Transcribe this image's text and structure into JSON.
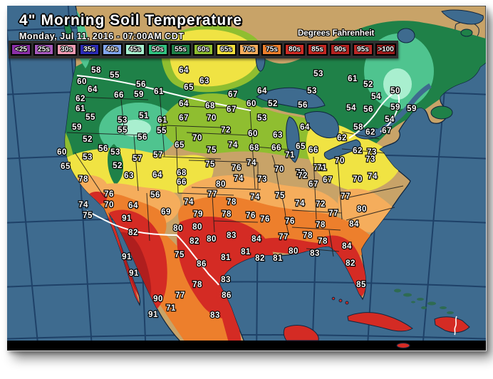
{
  "header": {
    "title": "4\" Morning Soil Temperature",
    "date_line": "Monday, Jul 11, 2016 - 07:00AM CDT",
    "units_label": "Degrees Fahrenheit"
  },
  "legend": {
    "items": [
      {
        "label": "<25",
        "color": "#8B2FA8"
      },
      {
        "label": "25s",
        "color": "#A85ABE"
      },
      {
        "label": "30s",
        "color": "#F09CB4"
      },
      {
        "label": "35s",
        "color": "#2C2CB8"
      },
      {
        "label": "40s",
        "color": "#82A6F0"
      },
      {
        "label": "45s",
        "color": "#A8F0D0"
      },
      {
        "label": "50s",
        "color": "#32C382"
      },
      {
        "label": "55s",
        "color": "#1F8148"
      },
      {
        "label": "60s",
        "color": "#8FBE30"
      },
      {
        "label": "65s",
        "color": "#F0E03C"
      },
      {
        "label": "70s",
        "color": "#F5AD5C"
      },
      {
        "label": "75s",
        "color": "#ED7F2C"
      },
      {
        "label": "80s",
        "color": "#D02B24"
      },
      {
        "label": "85s",
        "color": "#C22722"
      },
      {
        "label": "90s",
        "color": "#B52220"
      },
      {
        "label": "95s",
        "color": "#BB2726"
      },
      {
        "label": ">100",
        "color": "#A01C1C"
      }
    ]
  },
  "map": {
    "palette": {
      "ocean": "#3E6B8F",
      "grid": "#1D3F66",
      "coast": "#10263F",
      "land": "#C8A368",
      "band45": "#A9EFCF",
      "band50": "#4FC48F",
      "band55": "#1F8148",
      "band60": "#8FBE30",
      "band65": "#F0E343",
      "band70": "#F5AD5C",
      "band75": "#ED7F2C",
      "band80": "#D42B24",
      "band90": "#AF1E1E",
      "island_green": "#2E6B52",
      "border_international": "#FFFFFF",
      "state_line": "#1A1A1A",
      "no_data_strip": "#000000"
    },
    "stations": [
      [
        58,
        125,
        90
      ],
      [
        55,
        151,
        97
      ],
      [
        60,
        105,
        106
      ],
      [
        64,
        120,
        117
      ],
      [
        66,
        157,
        125
      ],
      [
        59,
        185,
        124
      ],
      [
        56,
        188,
        110
      ],
      [
        61,
        213,
        120
      ],
      [
        62,
        103,
        130
      ],
      [
        61,
        103,
        144
      ],
      [
        55,
        117,
        156
      ],
      [
        53,
        162,
        160
      ],
      [
        51,
        192,
        154
      ],
      [
        61,
        218,
        160
      ],
      [
        59,
        98,
        170
      ],
      [
        55,
        162,
        174
      ],
      [
        55,
        217,
        175
      ],
      [
        56,
        190,
        184
      ],
      [
        52,
        113,
        187
      ],
      [
        60,
        77,
        205
      ],
      [
        53,
        113,
        212
      ],
      [
        56,
        135,
        200
      ],
      [
        53,
        152,
        205
      ],
      [
        57,
        183,
        214
      ],
      [
        57,
        212,
        209
      ],
      [
        65,
        82,
        225
      ],
      [
        52,
        155,
        224
      ],
      [
        78,
        107,
        243
      ],
      [
        63,
        171,
        238
      ],
      [
        64,
        211,
        237
      ],
      [
        64,
        248,
        90
      ],
      [
        63,
        277,
        105
      ],
      [
        65,
        255,
        114
      ],
      [
        67,
        317,
        124
      ],
      [
        64,
        358,
        119
      ],
      [
        53,
        437,
        95
      ],
      [
        53,
        428,
        119
      ],
      [
        64,
        248,
        137
      ],
      [
        68,
        285,
        140
      ],
      [
        67,
        315,
        145
      ],
      [
        60,
        343,
        137
      ],
      [
        52,
        373,
        137
      ],
      [
        56,
        415,
        139
      ],
      [
        67,
        248,
        157
      ],
      [
        70,
        287,
        157
      ],
      [
        53,
        358,
        157
      ],
      [
        64,
        418,
        170
      ],
      [
        72,
        307,
        174
      ],
      [
        60,
        345,
        179
      ],
      [
        63,
        380,
        181
      ],
      [
        70,
        267,
        185
      ],
      [
        65,
        242,
        195
      ],
      [
        75,
        287,
        202
      ],
      [
        74,
        317,
        195
      ],
      [
        68,
        347,
        199
      ],
      [
        66,
        378,
        199
      ],
      [
        65,
        412,
        197
      ],
      [
        66,
        430,
        202
      ],
      [
        71,
        397,
        209
      ],
      [
        75,
        285,
        222
      ],
      [
        76,
        322,
        227
      ],
      [
        74,
        343,
        220
      ],
      [
        70,
        382,
        229
      ],
      [
        72,
        412,
        234
      ],
      [
        74,
        437,
        227
      ],
      [
        68,
        245,
        234
      ],
      [
        61,
        485,
        102
      ],
      [
        52,
        507,
        110
      ],
      [
        50,
        545,
        119
      ],
      [
        54,
        518,
        127
      ],
      [
        54,
        483,
        143
      ],
      [
        56,
        507,
        145
      ],
      [
        59,
        545,
        142
      ],
      [
        59,
        568,
        144
      ],
      [
        54,
        537,
        159
      ],
      [
        58,
        493,
        170
      ],
      [
        62,
        470,
        185
      ],
      [
        62,
        510,
        177
      ],
      [
        67,
        533,
        175
      ],
      [
        62,
        492,
        203
      ],
      [
        73,
        512,
        205
      ],
      [
        73,
        510,
        215
      ],
      [
        70,
        467,
        217
      ],
      [
        71,
        442,
        227
      ],
      [
        67,
        450,
        244
      ],
      [
        70,
        492,
        243
      ],
      [
        74,
        513,
        239
      ],
      [
        66,
        245,
        247
      ],
      [
        80,
        300,
        250
      ],
      [
        74,
        325,
        242
      ],
      [
        73,
        358,
        243
      ],
      [
        72,
        415,
        238
      ],
      [
        67,
        430,
        250
      ],
      [
        77,
        288,
        264
      ],
      [
        74,
        255,
        275
      ],
      [
        78,
        315,
        275
      ],
      [
        74,
        348,
        268
      ],
      [
        75,
        383,
        266
      ],
      [
        74,
        411,
        277
      ],
      [
        72,
        440,
        278
      ],
      [
        77,
        475,
        267
      ],
      [
        79,
        268,
        292
      ],
      [
        78,
        308,
        292
      ],
      [
        76,
        342,
        294
      ],
      [
        76,
        362,
        299
      ],
      [
        76,
        397,
        302
      ],
      [
        77,
        458,
        291
      ],
      [
        80,
        498,
        285
      ],
      [
        78,
        440,
        307
      ],
      [
        84,
        487,
        306
      ],
      [
        80,
        240,
        312
      ],
      [
        80,
        267,
        310
      ],
      [
        83,
        315,
        322
      ],
      [
        84,
        350,
        327
      ],
      [
        77,
        388,
        324
      ],
      [
        78,
        422,
        322
      ],
      [
        78,
        443,
        330
      ],
      [
        82,
        263,
        330
      ],
      [
        80,
        287,
        327
      ],
      [
        75,
        242,
        349
      ],
      [
        81,
        335,
        345
      ],
      [
        80,
        402,
        344
      ],
      [
        83,
        432,
        347
      ],
      [
        84,
        477,
        337
      ],
      [
        86,
        273,
        362
      ],
      [
        81,
        307,
        353
      ],
      [
        82,
        355,
        354
      ],
      [
        81,
        380,
        354
      ],
      [
        82,
        482,
        361
      ],
      [
        85,
        497,
        391
      ],
      [
        76,
        143,
        264
      ],
      [
        74,
        107,
        279
      ],
      [
        70,
        143,
        279
      ],
      [
        64,
        177,
        280
      ],
      [
        75,
        113,
        294
      ],
      [
        91,
        168,
        298
      ],
      [
        82,
        177,
        318
      ],
      [
        56,
        208,
        265
      ],
      [
        69,
        223,
        289
      ],
      [
        91,
        168,
        352
      ],
      [
        91,
        178,
        375
      ],
      [
        78,
        267,
        391
      ],
      [
        83,
        307,
        384
      ],
      [
        90,
        212,
        411
      ],
      [
        77,
        243,
        406
      ],
      [
        86,
        308,
        406
      ],
      [
        71,
        230,
        424
      ],
      [
        91,
        205,
        433
      ],
      [
        83,
        292,
        434
      ]
    ]
  }
}
